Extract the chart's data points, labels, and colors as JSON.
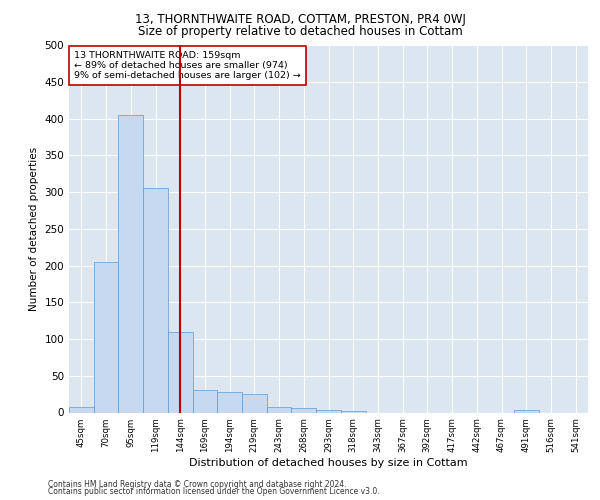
{
  "title_line1": "13, THORNTHWAITE ROAD, COTTAM, PRESTON, PR4 0WJ",
  "title_line2": "Size of property relative to detached houses in Cottam",
  "xlabel": "Distribution of detached houses by size in Cottam",
  "ylabel": "Number of detached properties",
  "categories": [
    "45sqm",
    "70sqm",
    "95sqm",
    "119sqm",
    "144sqm",
    "169sqm",
    "194sqm",
    "219sqm",
    "243sqm",
    "268sqm",
    "293sqm",
    "318sqm",
    "343sqm",
    "367sqm",
    "392sqm",
    "417sqm",
    "442sqm",
    "467sqm",
    "491sqm",
    "516sqm",
    "541sqm"
  ],
  "values": [
    8,
    205,
    405,
    305,
    110,
    30,
    28,
    25,
    8,
    6,
    3,
    2,
    0,
    0,
    0,
    0,
    0,
    0,
    3,
    0,
    0
  ],
  "bar_color": "#c6d9f0",
  "bar_edge_color": "#5b9bd5",
  "vline_x": 4.0,
  "vline_color": "#c00000",
  "annotation_text": "13 THORNTHWAITE ROAD: 159sqm\n← 89% of detached houses are smaller (974)\n9% of semi-detached houses are larger (102) →",
  "annotation_box_color": "#ffffff",
  "annotation_box_edge": "#c00000",
  "ylim": [
    0,
    500
  ],
  "yticks": [
    0,
    50,
    100,
    150,
    200,
    250,
    300,
    350,
    400,
    450,
    500
  ],
  "bg_color": "#dce6f1",
  "footer1": "Contains HM Land Registry data © Crown copyright and database right 2024.",
  "footer2": "Contains public sector information licensed under the Open Government Licence v3.0."
}
